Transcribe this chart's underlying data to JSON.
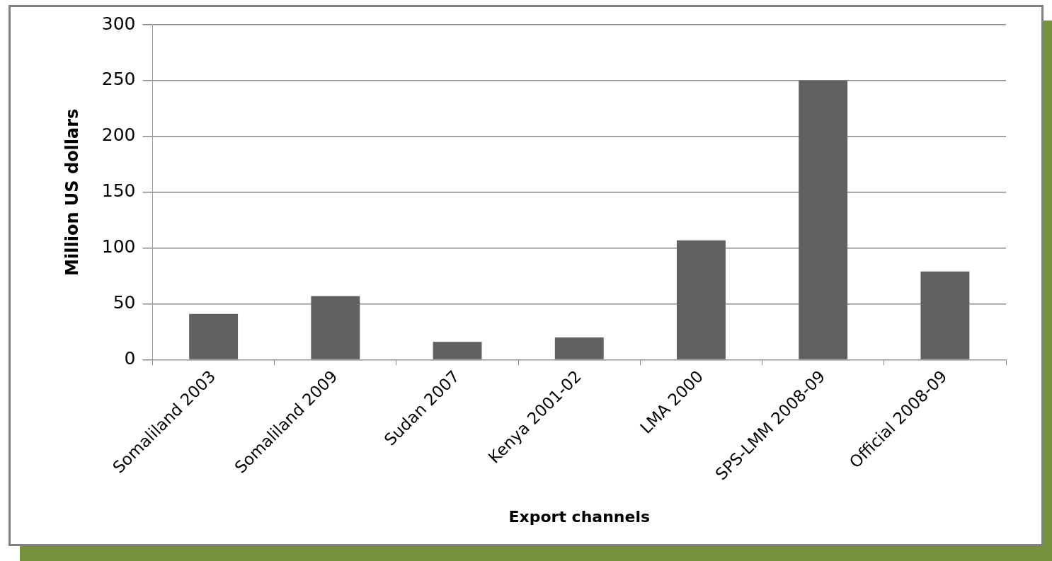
{
  "chart_data": {
    "type": "bar",
    "xlabel": "Export channels",
    "ylabel": "Million US dollars",
    "categories": [
      "Somaliland 2003",
      "Somaliland 2009",
      "Sudan 2007",
      "Kenya 2001-02",
      "LMA 2000",
      "SPS-LMM 2008-09",
      "Official 2008-09"
    ],
    "values": [
      41,
      57,
      16,
      20,
      107,
      250,
      79
    ],
    "color": "#606060",
    "ylim": [
      0,
      300
    ],
    "yticks": [
      0,
      50,
      100,
      150,
      200,
      250,
      300
    ],
    "grid": "y",
    "legend": false
  }
}
